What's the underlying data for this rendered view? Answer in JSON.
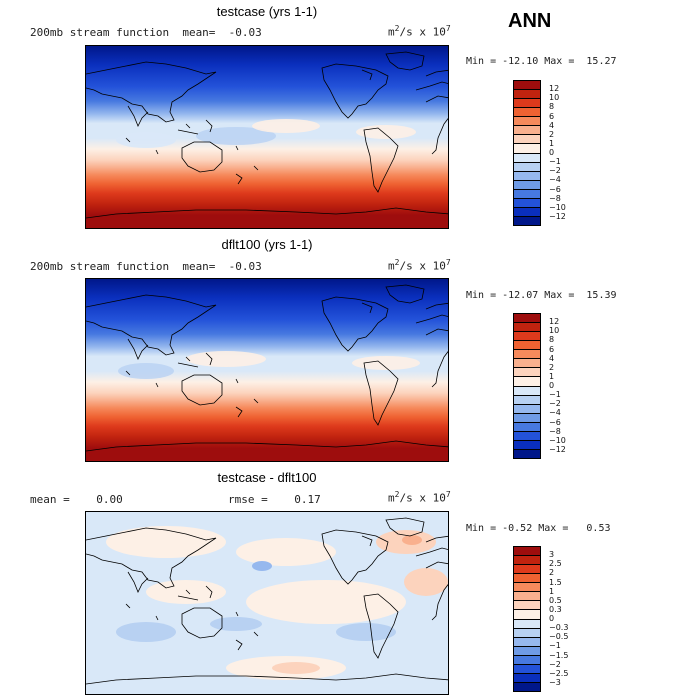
{
  "season": "ANN",
  "panels": [
    {
      "title": "testcase (yrs 1-1)",
      "subtitle": "200mb stream function  mean=  -0.03",
      "units_base": "m",
      "units_exp1": "2",
      "units_mid": "/s x 10",
      "units_exp2": "7",
      "minmax": "Min = -12.10 Max =  15.27",
      "colorbar_labels": [
        "12",
        "10",
        "8",
        "6",
        "4",
        "2",
        "1",
        "0",
        "−1",
        "−2",
        "−4",
        "−6",
        "−8",
        "−10",
        "−12"
      ],
      "colorbar_colors": [
        "#9e0d0d",
        "#c0230f",
        "#de3a1c",
        "#ef6232",
        "#f68a5c",
        "#f9b08e",
        "#fcd3bd",
        "#fdf0e6",
        "#d9e8f8",
        "#b8d1f2",
        "#96b8ee",
        "#6f9be6",
        "#4779e0",
        "#2352d9",
        "#0a2fbd",
        "#00178a"
      ],
      "mean": -0.03,
      "min": -12.1,
      "max": 15.27
    },
    {
      "title": "dflt100 (yrs 1-1)",
      "subtitle": "200mb stream function  mean=  -0.03",
      "units_base": "m",
      "units_exp1": "2",
      "units_mid": "/s x 10",
      "units_exp2": "7",
      "minmax": "Min = -12.07 Max =  15.39",
      "colorbar_labels": [
        "12",
        "10",
        "8",
        "6",
        "4",
        "2",
        "1",
        "0",
        "−1",
        "−2",
        "−4",
        "−6",
        "−8",
        "−10",
        "−12"
      ],
      "colorbar_colors": [
        "#9e0d0d",
        "#c0230f",
        "#de3a1c",
        "#ef6232",
        "#f68a5c",
        "#f9b08e",
        "#fcd3bd",
        "#fdf0e6",
        "#d9e8f8",
        "#b8d1f2",
        "#96b8ee",
        "#6f9be6",
        "#4779e0",
        "#2352d9",
        "#0a2fbd",
        "#00178a"
      ],
      "mean": -0.03,
      "min": -12.07,
      "max": 15.39
    },
    {
      "title": "testcase - dflt100",
      "subtitle_mean": "mean =    0.00",
      "subtitle_rmse": "rmse =    0.17",
      "units_base": "m",
      "units_exp1": "2",
      "units_mid": "/s x 10",
      "units_exp2": "7",
      "minmax": "Min = -0.52 Max =   0.53",
      "colorbar_labels": [
        "3",
        "2.5",
        "2",
        "1.5",
        "1",
        "0.5",
        "0.3",
        "0",
        "−0.3",
        "−0.5",
        "−1",
        "−1.5",
        "−2",
        "−2.5",
        "−3"
      ],
      "colorbar_colors": [
        "#9e0d0d",
        "#c0230f",
        "#de3a1c",
        "#ef6232",
        "#f68a5c",
        "#f9b08e",
        "#fcd3bd",
        "#fdf0e6",
        "#d9e8f8",
        "#b8d1f2",
        "#96b8ee",
        "#6f9be6",
        "#4779e0",
        "#2352d9",
        "#0a2fbd",
        "#00178a"
      ],
      "mean": 0.0,
      "rmse": 0.17,
      "min": -0.52,
      "max": 0.53
    }
  ]
}
